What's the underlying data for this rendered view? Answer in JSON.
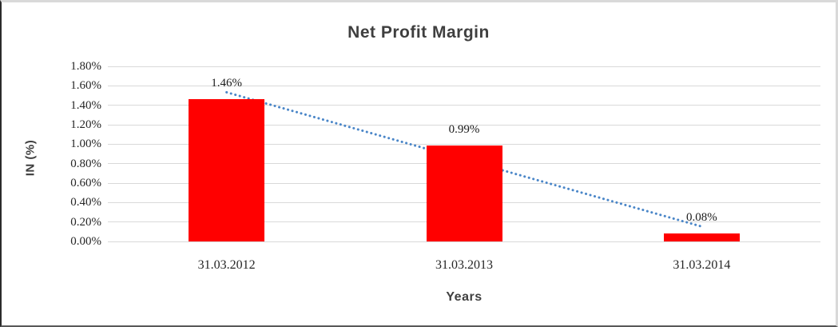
{
  "chart_data": {
    "type": "bar",
    "title": "Net Profit Margin",
    "xlabel": "Years",
    "ylabel": "IN (%)",
    "categories": [
      "31.03.2012",
      "31.03.2013",
      "31.03.2014"
    ],
    "values": [
      1.46,
      0.99,
      0.08
    ],
    "data_labels": [
      "1.46%",
      "0.99%",
      "0.08%"
    ],
    "ylim": [
      0,
      1.8
    ],
    "ytick_step": 0.2,
    "ytick_labels": [
      "1.80%",
      "1.60%",
      "1.40%",
      "1.20%",
      "1.00%",
      "0.80%",
      "0.60%",
      "0.40%",
      "0.20%",
      "0.00%"
    ],
    "grid": true,
    "legend": "none",
    "bar_color": "#ff0000",
    "gridline_color": "#d9d9d9",
    "title_color": "#3f3f3f",
    "trendline": {
      "type": "linear",
      "style": "dotted",
      "color": "#4a86c8"
    }
  }
}
